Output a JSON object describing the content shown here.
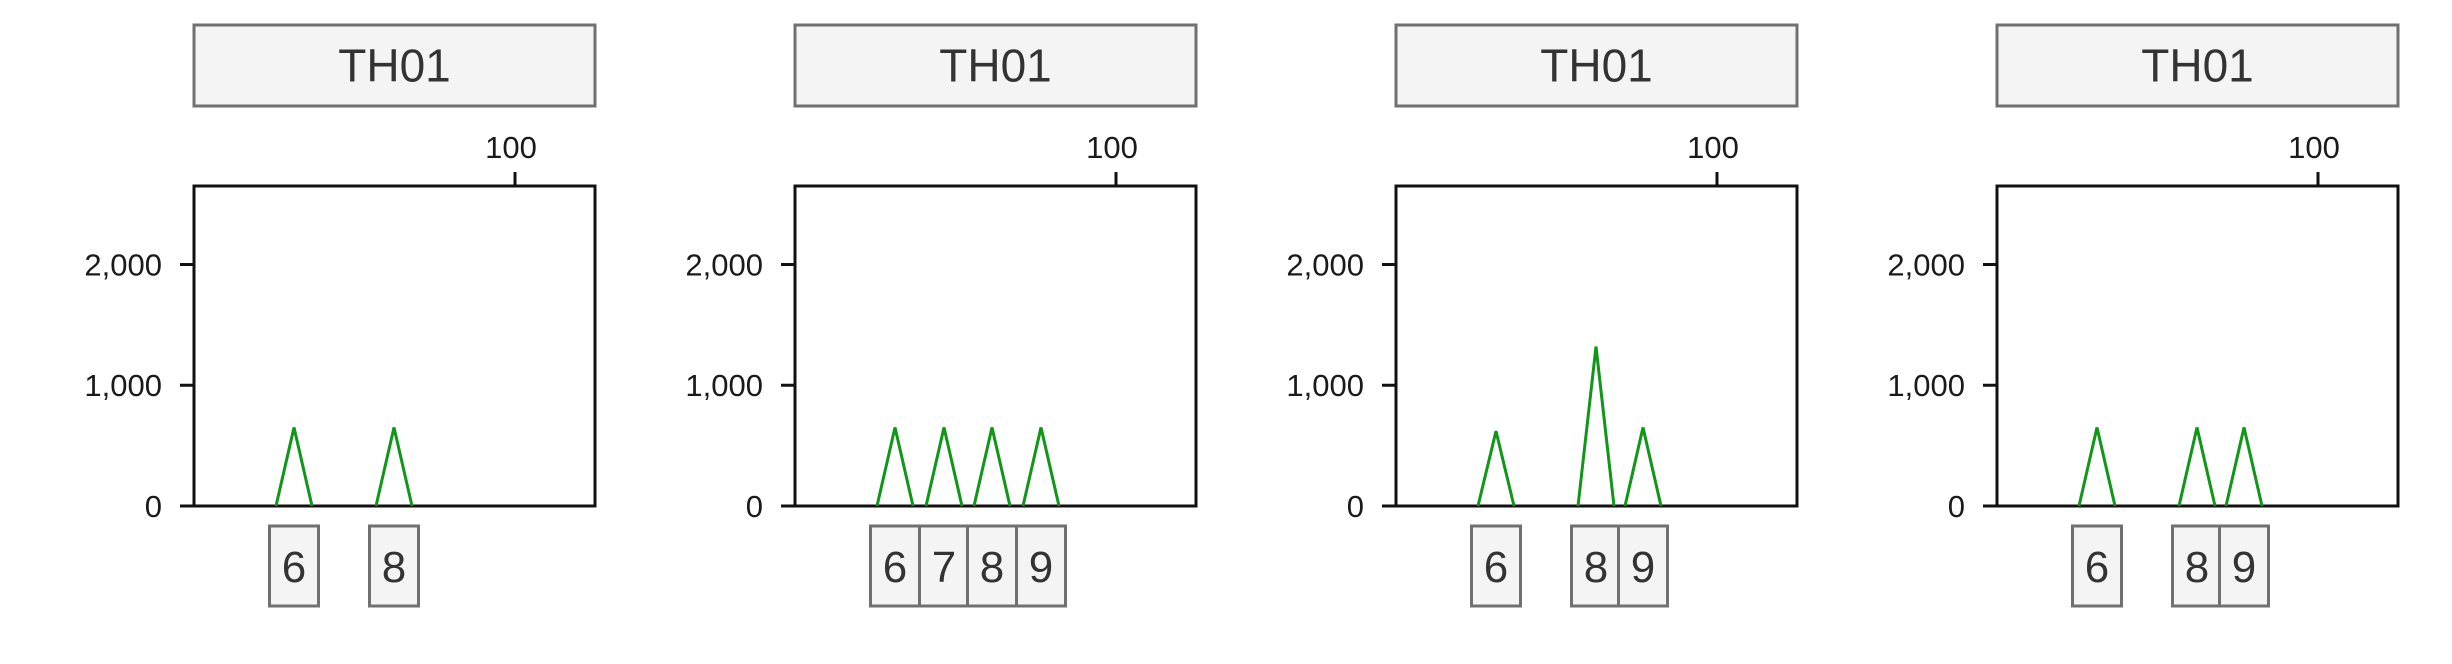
{
  "chart_data": [
    {
      "type": "line",
      "title": "TH01",
      "xlabel": "",
      "ylabel": "",
      "x_ticks": [
        100
      ],
      "y_ticks": [
        0,
        1000,
        2000
      ],
      "y_tick_labels": [
        "0",
        "1,000",
        "2,000"
      ],
      "ylim": [
        0,
        2650
      ],
      "peak_color": "#109618",
      "peaks": [
        {
          "allele": "6",
          "height": 650
        },
        {
          "allele": "8",
          "height": 650
        }
      ],
      "allele_labels": [
        "6",
        "8"
      ]
    },
    {
      "type": "line",
      "title": "TH01",
      "xlabel": "",
      "ylabel": "",
      "x_ticks": [
        100
      ],
      "y_ticks": [
        0,
        1000,
        2000
      ],
      "y_tick_labels": [
        "0",
        "1,000",
        "2,000"
      ],
      "ylim": [
        0,
        2650
      ],
      "peak_color": "#109618",
      "peaks": [
        {
          "allele": "6",
          "height": 650
        },
        {
          "allele": "7",
          "height": 650
        },
        {
          "allele": "8",
          "height": 650
        },
        {
          "allele": "9",
          "height": 650
        }
      ],
      "allele_labels": [
        "6",
        "7",
        "8",
        "9"
      ]
    },
    {
      "type": "line",
      "title": "TH01",
      "xlabel": "",
      "ylabel": "",
      "x_ticks": [
        100
      ],
      "y_ticks": [
        0,
        1000,
        2000
      ],
      "y_tick_labels": [
        "0",
        "1,000",
        "2,000"
      ],
      "ylim": [
        0,
        2650
      ],
      "peak_color": "#109618",
      "peaks": [
        {
          "allele": "6",
          "height": 620
        },
        {
          "allele": "8",
          "height": 1320
        },
        {
          "allele": "9",
          "height": 650
        }
      ],
      "allele_labels": [
        "6",
        "8",
        "9"
      ]
    },
    {
      "type": "line",
      "title": "TH01",
      "xlabel": "",
      "ylabel": "",
      "x_ticks": [
        100
      ],
      "y_ticks": [
        0,
        1000,
        2000
      ],
      "y_tick_labels": [
        "0",
        "1,000",
        "2,000"
      ],
      "ylim": [
        0,
        2650
      ],
      "peak_color": "#109618",
      "peaks": [
        {
          "allele": "6",
          "height": 650
        },
        {
          "allele": "8",
          "height": 650
        },
        {
          "allele": "9",
          "height": 650
        }
      ],
      "allele_labels": [
        "6",
        "8",
        "9"
      ]
    }
  ]
}
